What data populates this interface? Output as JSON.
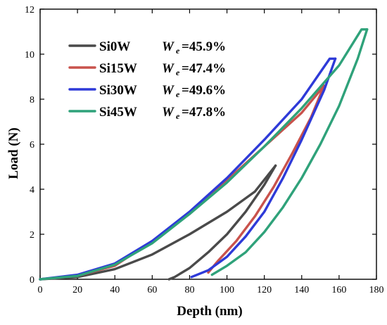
{
  "chart_data": {
    "type": "line",
    "xlabel": "Depth (nm)",
    "ylabel": "Load (N)",
    "xlim": [
      0,
      180
    ],
    "ylim": [
      0,
      12
    ],
    "xticks": [
      "0",
      "20",
      "40",
      "60",
      "80",
      "100",
      "120",
      "140",
      "160",
      "180"
    ],
    "yticks": [
      "0",
      "2",
      "4",
      "6",
      "8",
      "10",
      "12"
    ],
    "grid": false,
    "legend_position": "top-left",
    "we_symbol": "W",
    "we_subscript": "e",
    "series": [
      {
        "name": "Si0W",
        "we": "=45.9%",
        "color": "#4a4a4a",
        "loading": [
          [
            0,
            0
          ],
          [
            20,
            0.1
          ],
          [
            40,
            0.45
          ],
          [
            60,
            1.1
          ],
          [
            80,
            2.0
          ],
          [
            100,
            3.0
          ],
          [
            115,
            3.9
          ],
          [
            126,
            5.05
          ]
        ],
        "unloading": [
          [
            126,
            5.05
          ],
          [
            120,
            4.2
          ],
          [
            110,
            3.0
          ],
          [
            100,
            2.0
          ],
          [
            90,
            1.2
          ],
          [
            80,
            0.5
          ],
          [
            72,
            0.1
          ],
          [
            69,
            0
          ]
        ]
      },
      {
        "name": "Si15W",
        "we": "=47.4%",
        "color": "#c9524c",
        "loading": [
          [
            0,
            0
          ],
          [
            20,
            0.15
          ],
          [
            40,
            0.6
          ],
          [
            60,
            1.7
          ],
          [
            80,
            2.9
          ],
          [
            100,
            4.4
          ],
          [
            120,
            5.9
          ],
          [
            140,
            7.4
          ],
          [
            152,
            8.6
          ]
        ],
        "unloading": [
          [
            152,
            8.6
          ],
          [
            145,
            7.2
          ],
          [
            135,
            5.6
          ],
          [
            125,
            4.1
          ],
          [
            115,
            2.8
          ],
          [
            105,
            1.7
          ],
          [
            95,
            0.8
          ],
          [
            90,
            0.3
          ]
        ]
      },
      {
        "name": "Si30W",
        "we": "=49.6%",
        "color": "#2e3ad8",
        "loading": [
          [
            0,
            0
          ],
          [
            20,
            0.2
          ],
          [
            40,
            0.7
          ],
          [
            60,
            1.7
          ],
          [
            80,
            3.0
          ],
          [
            100,
            4.5
          ],
          [
            120,
            6.2
          ],
          [
            140,
            8.0
          ],
          [
            155,
            9.8
          ],
          [
            158,
            9.8
          ]
        ],
        "unloading": [
          [
            158,
            9.8
          ],
          [
            152,
            8.4
          ],
          [
            140,
            6.2
          ],
          [
            130,
            4.5
          ],
          [
            120,
            3.0
          ],
          [
            110,
            1.9
          ],
          [
            100,
            1.0
          ],
          [
            90,
            0.4
          ],
          [
            81,
            0.1
          ]
        ]
      },
      {
        "name": "Si45W",
        "we": "=47.8%",
        "color": "#2fa27a",
        "loading": [
          [
            0,
            0
          ],
          [
            20,
            0.15
          ],
          [
            40,
            0.65
          ],
          [
            60,
            1.6
          ],
          [
            80,
            2.9
          ],
          [
            100,
            4.3
          ],
          [
            120,
            5.9
          ],
          [
            140,
            7.6
          ],
          [
            160,
            9.5
          ],
          [
            172,
            11.1
          ],
          [
            175,
            11.1
          ]
        ],
        "unloading": [
          [
            175,
            11.1
          ],
          [
            170,
            9.8
          ],
          [
            160,
            7.7
          ],
          [
            150,
            6.0
          ],
          [
            140,
            4.5
          ],
          [
            130,
            3.2
          ],
          [
            120,
            2.1
          ],
          [
            110,
            1.2
          ],
          [
            100,
            0.6
          ],
          [
            92,
            0.2
          ]
        ]
      }
    ]
  }
}
